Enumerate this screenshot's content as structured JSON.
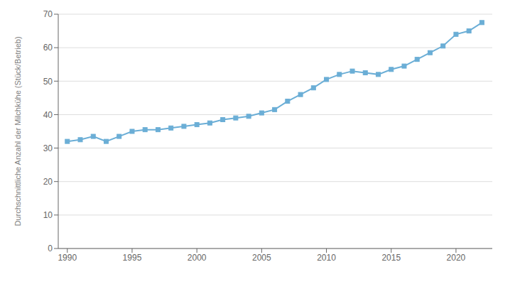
{
  "chart_data": {
    "type": "line",
    "x": [
      1990,
      1991,
      1992,
      1993,
      1994,
      1995,
      1996,
      1997,
      1998,
      1999,
      2000,
      2001,
      2002,
      2003,
      2004,
      2005,
      2006,
      2007,
      2008,
      2009,
      2010,
      2011,
      2012,
      2013,
      2014,
      2015,
      2016,
      2017,
      2018,
      2019,
      2020,
      2021,
      2022
    ],
    "values": [
      32.0,
      32.5,
      33.5,
      32.0,
      33.5,
      35.0,
      35.5,
      35.5,
      36.0,
      36.5,
      37.0,
      37.5,
      38.5,
      39.0,
      39.5,
      40.5,
      41.5,
      44.0,
      46.0,
      48.0,
      50.5,
      52.0,
      53.0,
      52.5,
      52.0,
      53.5,
      54.5,
      56.5,
      58.5,
      60.5,
      64.0,
      65.0,
      67.5
    ],
    "ylabel": "Durchschnittliche Anzahl der Milchkühe (Stück/Betrieb)",
    "color": "#6baed6",
    "marker": "square",
    "xlim": [
      1989.3,
      2022.8
    ],
    "xticks": [
      1990,
      1995,
      2000,
      2005,
      2010,
      2015,
      2020
    ],
    "ylim": [
      0,
      70
    ],
    "yticks": [
      0,
      10,
      20,
      30,
      40,
      50,
      60,
      70
    ],
    "grid": true
  }
}
